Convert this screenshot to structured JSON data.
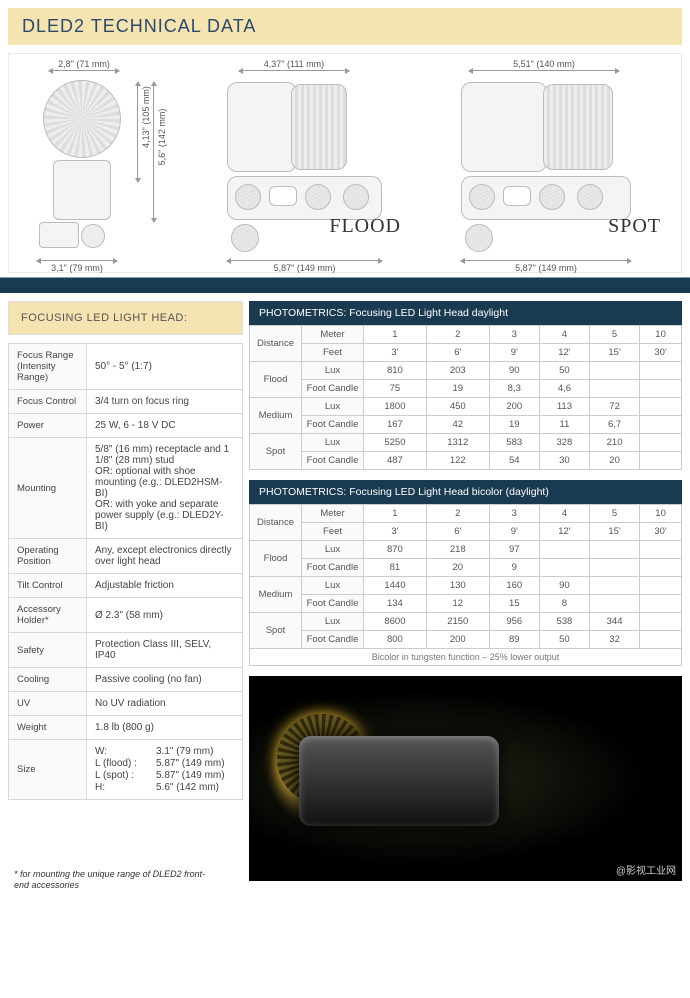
{
  "title": "DLED2 TECHNICAL DATA",
  "diagrams": {
    "side": {
      "top_dim": "2,8\" (71 mm)",
      "bottom_dim": "3,1\" (79 mm)",
      "h1": "4,13\" (105 mm)",
      "h2": "5,6\" (142 mm)"
    },
    "flood": {
      "label": "FLOOD",
      "top_dim": "4,37\" (111 mm)",
      "bottom_dim": "5,87\" (149 mm)"
    },
    "spot": {
      "label": "SPOT",
      "top_dim": "5,51\" (140 mm)",
      "bottom_dim": "5,87\" (149 mm)"
    }
  },
  "spec_header": "FOCUSING LED LIGHT HEAD:",
  "specs": [
    {
      "k": "Focus Range (Intensity Range)",
      "v": "50° - 5°  (1:7)"
    },
    {
      "k": "Focus Control",
      "v": "3/4 turn on focus ring"
    },
    {
      "k": "Power",
      "v": "25 W, 6 - 18 V DC"
    },
    {
      "k": "Mounting",
      "v": "5/8\" (16 mm) receptacle and 1 1/8\" (28 mm) stud\nOR: optional with shoe mounting (e.g.: DLED2HSM-BI)\nOR: with yoke and separate power supply (e.g.: DLED2Y-BI)"
    },
    {
      "k": "Operating Position",
      "v": "Any, except electronics directly over light head"
    },
    {
      "k": "Tilt Control",
      "v": "Adjustable friction"
    },
    {
      "k": "Accessory Holder*",
      "v": "Ø 2.3\" (58 mm)"
    },
    {
      "k": "Safety",
      "v": "Protection Class III, SELV, IP40"
    },
    {
      "k": "Cooling",
      "v": "Passive cooling (no fan)"
    },
    {
      "k": "UV",
      "v": "No UV radiation"
    },
    {
      "k": "Weight",
      "v": "1.8 lb (800 g)"
    }
  ],
  "size": {
    "k": "Size",
    "rows": [
      [
        "W:",
        "3.1\" (79 mm)"
      ],
      [
        "L (flood) :",
        "5.87\" (149 mm)"
      ],
      [
        "L (spot) :",
        "5.87\" (149 mm)"
      ],
      [
        "H:",
        "5.6\" (142 mm)"
      ]
    ]
  },
  "photometrics": [
    {
      "title": "PHOTOMETRICS: Focusing LED Light Head daylight",
      "distance_label": "Distance",
      "units": [
        "Meter",
        "Feet"
      ],
      "cols_meter": [
        "1",
        "2",
        "3",
        "4",
        "5",
        "10"
      ],
      "cols_feet": [
        "3'",
        "6'",
        "9'",
        "12'",
        "15'",
        "30'"
      ],
      "groups": [
        {
          "name": "Flood",
          "rows": [
            {
              "u": "Lux",
              "v": [
                "810",
                "203",
                "90",
                "50",
                "",
                ""
              ]
            },
            {
              "u": "Foot Candle",
              "v": [
                "75",
                "19",
                "8,3",
                "4,6",
                "",
                ""
              ]
            }
          ]
        },
        {
          "name": "Medium",
          "rows": [
            {
              "u": "Lux",
              "v": [
                "1800",
                "450",
                "200",
                "113",
                "72",
                ""
              ]
            },
            {
              "u": "Foot Candle",
              "v": [
                "167",
                "42",
                "19",
                "11",
                "6,7",
                ""
              ]
            }
          ]
        },
        {
          "name": "Spot",
          "rows": [
            {
              "u": "Lux",
              "v": [
                "5250",
                "1312",
                "583",
                "328",
                "210",
                ""
              ]
            },
            {
              "u": "Foot Candle",
              "v": [
                "487",
                "122",
                "54",
                "30",
                "20",
                ""
              ]
            }
          ]
        }
      ]
    },
    {
      "title": "PHOTOMETRICS: Focusing LED Light Head bicolor (daylight)",
      "distance_label": "Distance",
      "units": [
        "Meter",
        "Feet"
      ],
      "cols_meter": [
        "1",
        "2",
        "3",
        "4",
        "5",
        "10"
      ],
      "cols_feet": [
        "3'",
        "6'",
        "9'",
        "12'",
        "15'",
        "30'"
      ],
      "groups": [
        {
          "name": "Flood",
          "rows": [
            {
              "u": "Lux",
              "v": [
                "870",
                "218",
                "97",
                "",
                "",
                ""
              ]
            },
            {
              "u": "Foot Candle",
              "v": [
                "81",
                "20",
                "9",
                "",
                "",
                ""
              ]
            }
          ]
        },
        {
          "name": "Medium",
          "rows": [
            {
              "u": "Lux",
              "v": [
                "1440",
                "130",
                "160",
                "90",
                "",
                ""
              ]
            },
            {
              "u": "Foot Candle",
              "v": [
                "134",
                "12",
                "15",
                "8",
                "",
                ""
              ]
            }
          ]
        },
        {
          "name": "Spot",
          "rows": [
            {
              "u": "Lux",
              "v": [
                "8600",
                "2150",
                "956",
                "538",
                "344",
                ""
              ]
            },
            {
              "u": "Foot Candle",
              "v": [
                "800",
                "200",
                "89",
                "50",
                "32",
                ""
              ]
            }
          ]
        }
      ],
      "footnote": "Bicolor in tungsten function – 25% lower output"
    }
  ],
  "page_footnote": "* for mounting the unique range of DLED2 front-end accessories",
  "watermark": "@影视工业网"
}
